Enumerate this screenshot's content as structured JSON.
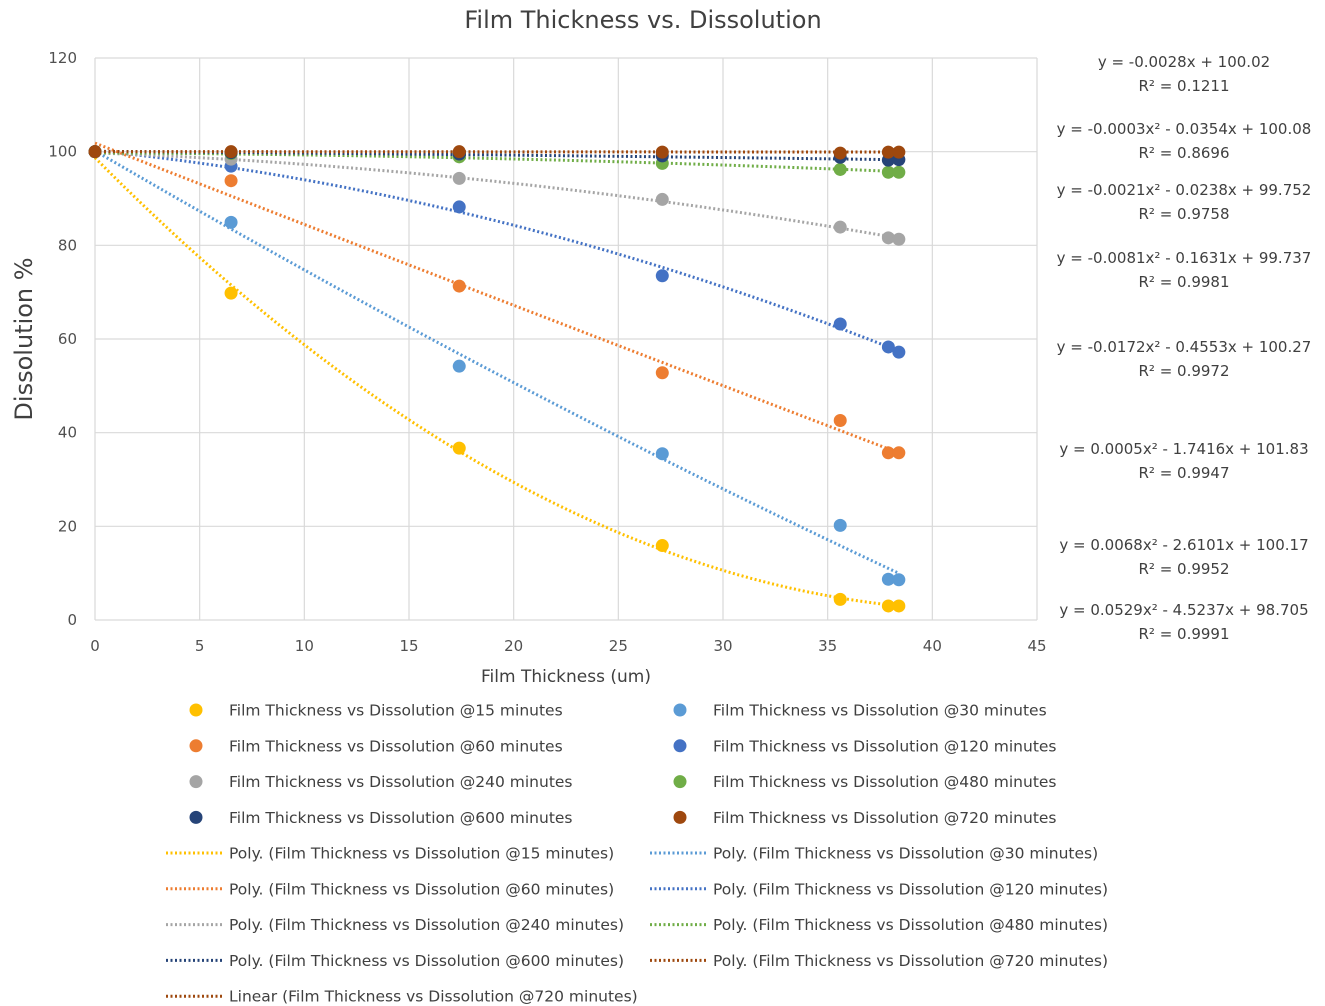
{
  "chart_data": {
    "type": "scatter",
    "title": "Film Thickness vs. Dissolution",
    "xlabel": "Film Thickness (um)",
    "ylabel": "Dissolution %",
    "xlim": [
      0,
      45
    ],
    "ylim": [
      0,
      120
    ],
    "xticks": [
      "0",
      "5",
      "10",
      "15",
      "20",
      "25",
      "30",
      "35",
      "40",
      "45"
    ],
    "yticks": [
      "0",
      "20",
      "40",
      "60",
      "80",
      "100",
      "120"
    ],
    "grid": true,
    "legend_position": "bottom",
    "series": [
      {
        "name": "Film Thickness vs Dissolution @15 minutes",
        "color": "#FFC000",
        "x": [
          0,
          6.5,
          17.4,
          27.1,
          35.6,
          37.9,
          38.4
        ],
        "y": [
          100,
          69.8,
          36.7,
          15.9,
          4.4,
          3.0,
          3.0
        ],
        "fit": [
          98.705,
          -4.5237,
          0.0529
        ]
      },
      {
        "name": "Film Thickness vs Dissolution @30 minutes",
        "color": "#5B9BD5",
        "x": [
          0,
          6.5,
          17.4,
          27.1,
          35.6,
          37.9,
          38.4
        ],
        "y": [
          100,
          84.9,
          54.2,
          35.5,
          20.2,
          8.7,
          8.6
        ],
        "fit": [
          100.17,
          -2.6101,
          0.0068
        ]
      },
      {
        "name": "Film Thickness vs Dissolution @60 minutes",
        "color": "#ED7D31",
        "x": [
          0,
          6.5,
          17.4,
          27.1,
          35.6,
          37.9,
          38.4
        ],
        "y": [
          100,
          93.8,
          71.3,
          52.8,
          42.6,
          35.7,
          35.7
        ],
        "fit": [
          101.83,
          -1.7416,
          0.0005
        ]
      },
      {
        "name": "Film Thickness vs Dissolution @120 minutes",
        "color": "#4472C4",
        "x": [
          0,
          6.5,
          17.4,
          27.1,
          35.6,
          37.9,
          38.4
        ],
        "y": [
          100,
          96.9,
          88.2,
          73.5,
          63.2,
          58.3,
          57.2
        ],
        "fit": [
          100.27,
          -0.4553,
          -0.0172
        ]
      },
      {
        "name": "Film Thickness vs Dissolution @240 minutes",
        "color": "#A5A5A5",
        "x": [
          0,
          6.5,
          17.4,
          27.1,
          35.6,
          37.9,
          38.4
        ],
        "y": [
          100,
          98.4,
          94.3,
          89.8,
          83.9,
          81.6,
          81.3
        ],
        "fit": [
          99.737,
          -0.1631,
          -0.0081
        ]
      },
      {
        "name": "Film Thickness vs Dissolution @480 minutes",
        "color": "#70AD47",
        "x": [
          0,
          6.5,
          17.4,
          27.1,
          35.6,
          37.9,
          38.4
        ],
        "y": [
          100,
          99.6,
          98.9,
          97.5,
          96.2,
          95.6,
          95.6
        ],
        "fit": [
          99.752,
          -0.0238,
          -0.0021
        ]
      },
      {
        "name": "Film Thickness vs Dissolution @600 minutes",
        "color": "#264478",
        "x": [
          0,
          6.5,
          17.4,
          27.1,
          35.6,
          37.9,
          38.4
        ],
        "y": [
          100,
          99.8,
          99.5,
          99.1,
          98.8,
          98.2,
          98.3
        ],
        "fit": [
          100.08,
          -0.0354,
          -0.0003
        ]
      },
      {
        "name": "Film Thickness vs Dissolution @720 minutes",
        "color": "#9E480E",
        "x": [
          0,
          6.5,
          17.4,
          27.1,
          35.6,
          37.9,
          38.4
        ],
        "y": [
          100,
          100,
          100,
          99.9,
          99.7,
          99.9,
          99.9
        ],
        "fit": [
          100.02,
          -0.0028,
          0
        ]
      }
    ],
    "trendline_legend": [
      {
        "label": "Poly. (Film Thickness vs Dissolution @15 minutes)",
        "color": "#FFC000"
      },
      {
        "label": "Poly. (Film Thickness vs Dissolution @30 minutes)",
        "color": "#5B9BD5"
      },
      {
        "label": "Poly. (Film Thickness vs Dissolution @60 minutes)",
        "color": "#ED7D31"
      },
      {
        "label": "Poly. (Film Thickness vs Dissolution @120 minutes)",
        "color": "#4472C4"
      },
      {
        "label": "Poly. (Film Thickness vs Dissolution @240 minutes)",
        "color": "#A5A5A5"
      },
      {
        "label": "Poly. (Film Thickness vs Dissolution @480 minutes)",
        "color": "#70AD47"
      },
      {
        "label": "Poly. (Film Thickness vs Dissolution @600 minutes)",
        "color": "#264478"
      },
      {
        "label": "Poly. (Film Thickness vs Dissolution @720 minutes)",
        "color": "#9E480E"
      },
      {
        "label": "Linear (Film Thickness vs Dissolution @720 minutes)",
        "color": "#9E480E"
      }
    ],
    "equations": [
      {
        "eq": "y = -0.0028x + 100.02",
        "r2": "R² = 0.1211"
      },
      {
        "eq": "y = -0.0003x² - 0.0354x + 100.08",
        "r2": "R² = 0.8696"
      },
      {
        "eq": "y = -0.0021x² - 0.0238x + 99.752",
        "r2": "R² = 0.9758"
      },
      {
        "eq": "y = -0.0081x² - 0.1631x + 99.737",
        "r2": "R² = 0.9981"
      },
      {
        "eq": "y = -0.0172x² - 0.4553x + 100.27",
        "r2": "R² = 0.9972"
      },
      {
        "eq": "y = 0.0005x² - 1.7416x + 101.83",
        "r2": "R² = 0.9947"
      },
      {
        "eq": "y = 0.0068x² - 2.6101x + 100.17",
        "r2": "R² = 0.9952"
      },
      {
        "eq": "y = 0.0529x² - 4.5237x + 98.705",
        "r2": "R² = 0.9991"
      }
    ]
  }
}
